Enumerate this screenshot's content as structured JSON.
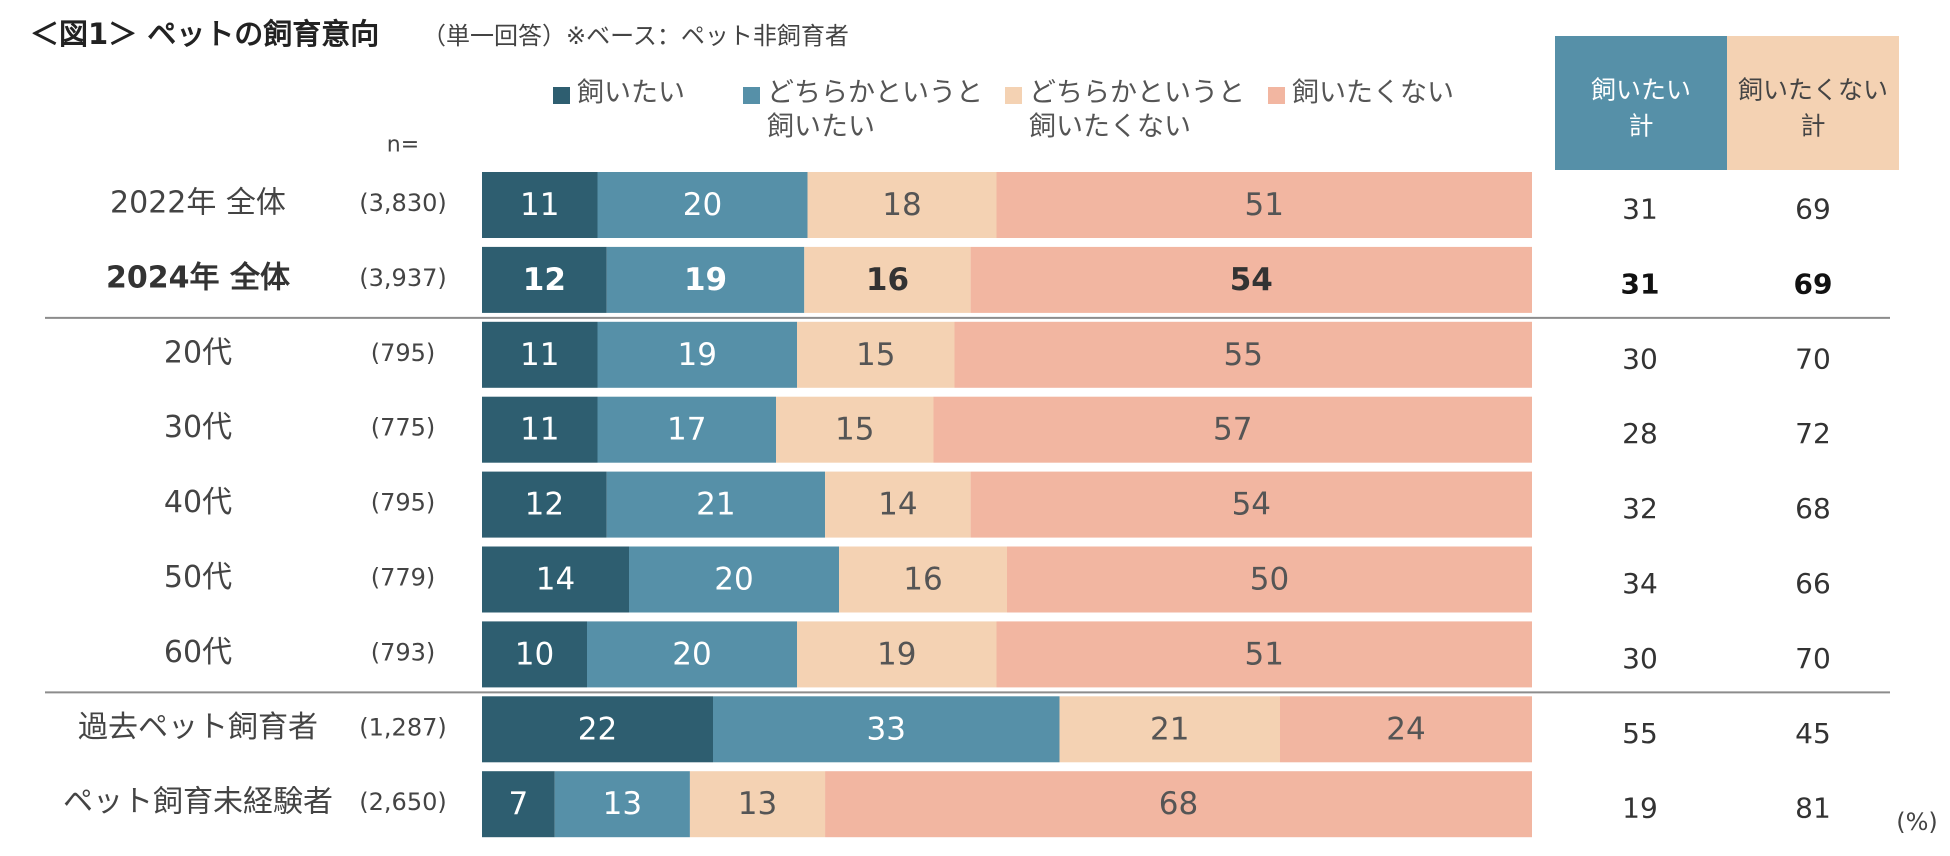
{
  "chart_data": {
    "type": "bar",
    "orientation": "horizontal-stacked-100",
    "title": "＜図1＞ ペットの飼育意向",
    "subtitle": "（単一回答）※ベース：ペット非飼育者",
    "n_label": "n=",
    "unit_label": "(%)",
    "xlim": [
      0,
      100
    ],
    "series": [
      {
        "name": "飼いたい",
        "legend_lines": [
          "飼いたい"
        ],
        "color": "#2e5e70",
        "text_color": "#ffffff"
      },
      {
        "name": "どちらかというと飼いたい",
        "legend_lines": [
          "どちらかというと",
          "飼いたい"
        ],
        "color": "#5690a8",
        "text_color": "#ffffff"
      },
      {
        "name": "どちらかというと飼いたくない",
        "legend_lines": [
          "どちらかというと",
          "飼いたくない"
        ],
        "color": "#f4d2b3",
        "text_color": "#555555"
      },
      {
        "name": "飼いたくない",
        "legend_lines": [
          "飼いたくない"
        ],
        "color": "#f2b6a1",
        "text_color": "#555555"
      }
    ],
    "summary_headers": [
      {
        "lines": [
          "飼いたい",
          "計"
        ],
        "bg": "#5690a8",
        "text_color": "#ffffff"
      },
      {
        "lines": [
          "飼いたくない",
          "計"
        ],
        "bg": "#f4d2b3",
        "text_color": "#444444"
      }
    ],
    "rows": [
      {
        "label": "2022年 全体",
        "n": "(3,830)",
        "values": [
          11,
          20,
          18,
          51
        ],
        "summary": [
          31,
          69
        ],
        "bold": false
      },
      {
        "label": "2024年 全体",
        "n": "(3,937)",
        "values": [
          12,
          19,
          16,
          54
        ],
        "summary": [
          31,
          69
        ],
        "bold": true
      },
      {
        "label": "20代",
        "n": "(795)",
        "values": [
          11,
          19,
          15,
          55
        ],
        "summary": [
          30,
          70
        ],
        "bold": false
      },
      {
        "label": "30代",
        "n": "(775)",
        "values": [
          11,
          17,
          15,
          57
        ],
        "summary": [
          28,
          72
        ],
        "bold": false
      },
      {
        "label": "40代",
        "n": "(795)",
        "values": [
          12,
          21,
          14,
          54
        ],
        "summary": [
          32,
          68
        ],
        "bold": false
      },
      {
        "label": "50代",
        "n": "(779)",
        "values": [
          14,
          20,
          16,
          50
        ],
        "summary": [
          34,
          66
        ],
        "bold": false
      },
      {
        "label": "60代",
        "n": "(793)",
        "values": [
          10,
          20,
          19,
          51
        ],
        "summary": [
          30,
          70
        ],
        "bold": false
      },
      {
        "label": "過去ペット飼育者",
        "n": "(1,287)",
        "values": [
          22,
          33,
          21,
          24
        ],
        "summary": [
          55,
          45
        ],
        "bold": false
      },
      {
        "label": "ペット飼育未経験者",
        "n": "(2,650)",
        "values": [
          7,
          13,
          13,
          68
        ],
        "summary": [
          19,
          81
        ],
        "bold": false
      }
    ],
    "separators_after_rows": [
      1,
      6
    ]
  }
}
